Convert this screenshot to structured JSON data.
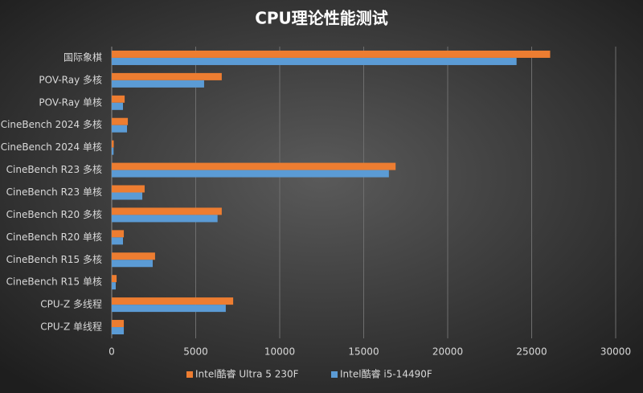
{
  "chart_data": {
    "type": "hbar",
    "title": "CPU理论性能测试",
    "categories": [
      "国际象棋",
      "POV-Ray 多核",
      "POV-Ray 单核",
      "CineBench 2024 多核",
      "CineBench 2024 单核",
      "CineBench R23 多核",
      "CineBench R23 单核",
      "CineBench R20 多核",
      "CineBench R20 单核",
      "CineBench R15 多核",
      "CineBench R15 单核",
      "CPU-Z 多线程",
      "CPU-Z 单线程"
    ],
    "series": [
      {
        "name": "Intel酷睿 Ultra 5 230F",
        "color": "#ed7d31",
        "values": [
          26100,
          6550,
          770,
          960,
          120,
          16900,
          1960,
          6550,
          720,
          2580,
          290,
          7230,
          720
        ]
      },
      {
        "name": "Intel酷睿 i5-14490F",
        "color": "#5b9bd5",
        "values": [
          24100,
          5500,
          670,
          910,
          110,
          16500,
          1820,
          6300,
          670,
          2440,
          240,
          6790,
          720
        ]
      }
    ],
    "xlim": [
      0,
      30000
    ],
    "xticks": [
      0,
      5000,
      10000,
      15000,
      20000,
      25000,
      30000
    ],
    "grid": true,
    "legend": "bottom"
  }
}
